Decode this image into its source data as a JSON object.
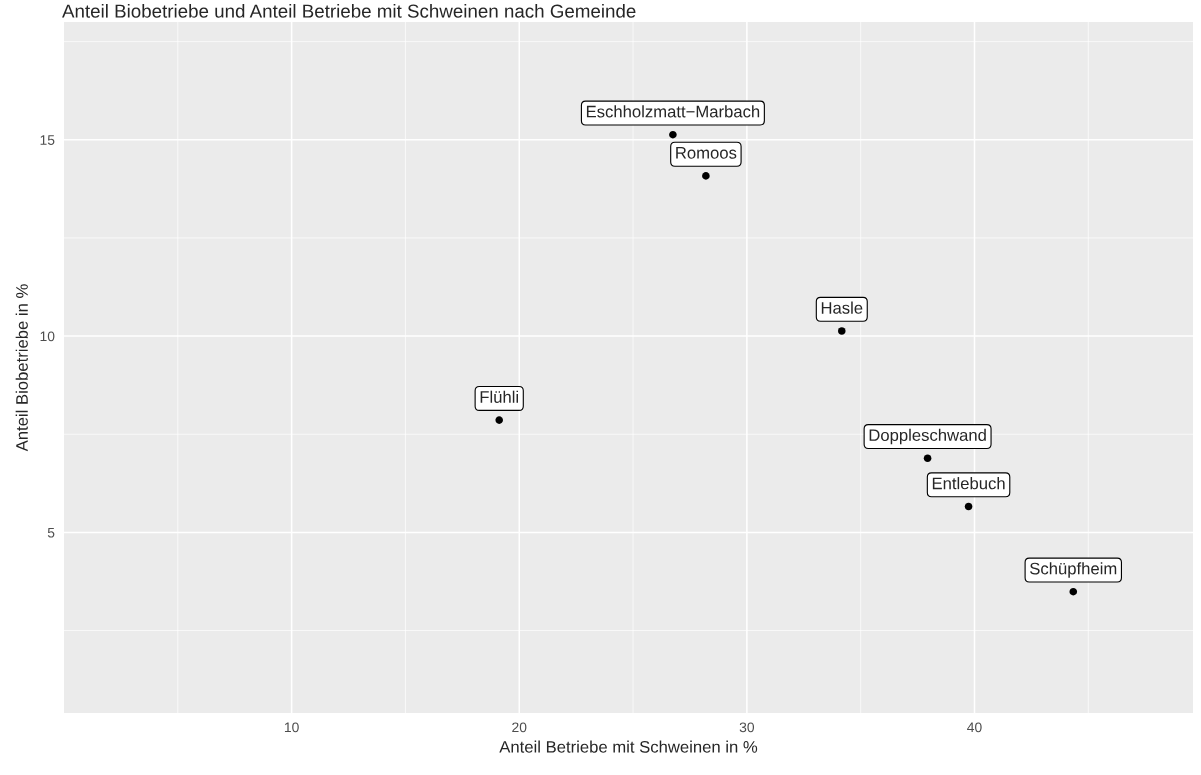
{
  "chart_data": {
    "type": "scatter",
    "title": "Anteil Biobetriebe und Anteil Betriebe mit Schweinen nach Gemeinde",
    "xlabel": "Anteil Betriebe mit Schweinen in %",
    "ylabel": "Anteil Biobetriebe in %",
    "series": [
      {
        "color": "#000000",
        "x": [
          26.75,
          28.2,
          34.17,
          19.12,
          37.94,
          39.74,
          44.34
        ],
        "values": [
          15.13,
          14.08,
          10.13,
          7.86,
          6.89,
          5.66,
          3.49
        ]
      }
    ],
    "annotations": [
      {
        "text": "Eschholzmatt−Marbach",
        "x": 26.75,
        "y": 15.13
      },
      {
        "text": "Romoos",
        "x": 28.2,
        "y": 14.08
      },
      {
        "text": "Hasle",
        "x": 34.17,
        "y": 10.13
      },
      {
        "text": "Flühli",
        "x": 19.12,
        "y": 7.86
      },
      {
        "text": "Doppleschwand",
        "x": 37.94,
        "y": 6.89
      },
      {
        "text": "Entlebuch",
        "x": 39.74,
        "y": 5.66
      },
      {
        "text": "Schüpfheim",
        "x": 44.34,
        "y": 3.49
      }
    ],
    "xlim": [
      0,
      49.6
    ],
    "ylim": [
      0.4,
      18.0
    ],
    "xticks": [
      10,
      20,
      30,
      40
    ],
    "yticks": [
      5,
      10,
      15
    ],
    "grid": true,
    "marker": "circle",
    "legend": false
  }
}
